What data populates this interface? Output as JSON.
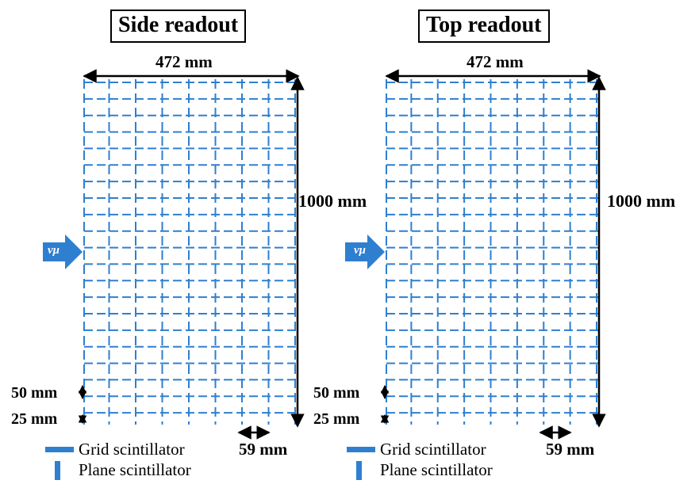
{
  "panels": [
    {
      "id": "side",
      "title": "Side readout",
      "width_label": "472 mm",
      "height_label": "1000 mm",
      "pitch_label": "59 mm",
      "plane_gap_label": "50 mm",
      "half_gap_label": "25 mm",
      "beam_label": "νμ"
    },
    {
      "id": "top",
      "title": "Top readout",
      "width_label": "472 mm",
      "height_label": "1000 mm",
      "pitch_label": "59 mm",
      "plane_gap_label": "50 mm",
      "half_gap_label": "25 mm",
      "beam_label": "νμ"
    }
  ],
  "legend": {
    "grid_label": "Grid scintillator",
    "plane_label": "Plane scintillator"
  },
  "colors": {
    "scintillator": "#2f7fd0",
    "beam_arrow": "#2f7fd0",
    "dimension": "#000000"
  },
  "icons": {
    "beam": "right-arrow-icon"
  }
}
